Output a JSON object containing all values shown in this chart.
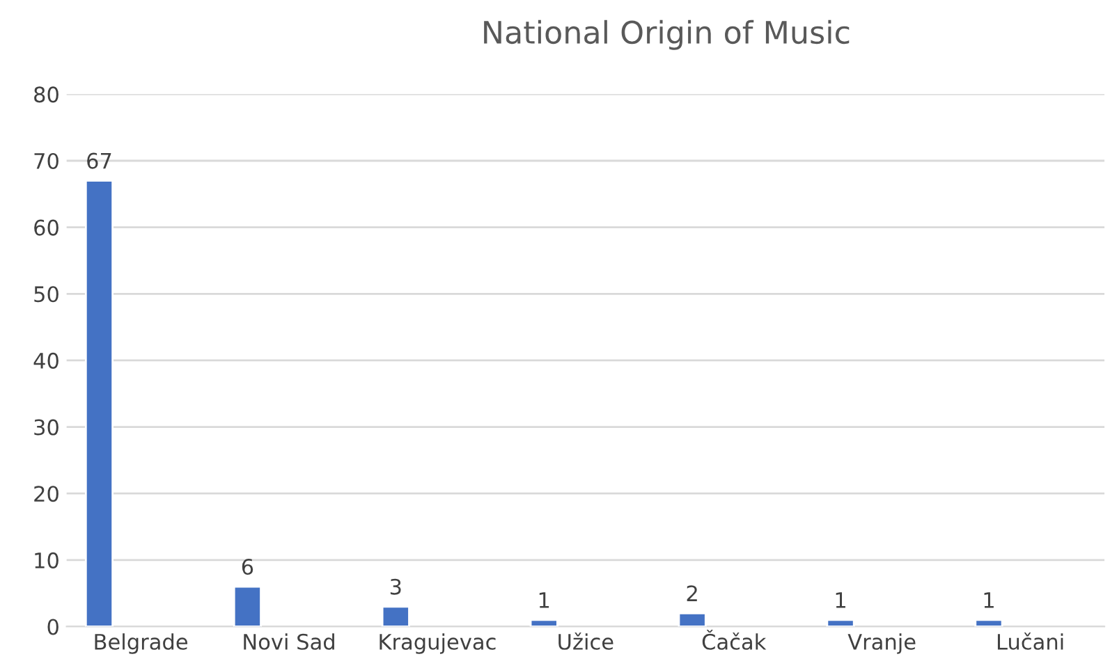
{
  "chart_data": {
    "type": "bar",
    "title": "National Origin of Music",
    "categories": [
      "Belgrade",
      "Novi Sad",
      "Kragujevac",
      "Užice",
      "Čačak",
      "Vranje",
      "Lučani"
    ],
    "values": [
      67,
      6,
      3,
      1,
      2,
      1,
      1
    ],
    "color": "#4472c4",
    "ylim": [
      0,
      80
    ],
    "yticks": [
      0,
      10,
      20,
      30,
      40,
      50,
      60,
      70,
      80
    ],
    "grid": "y",
    "data_labels": true
  }
}
